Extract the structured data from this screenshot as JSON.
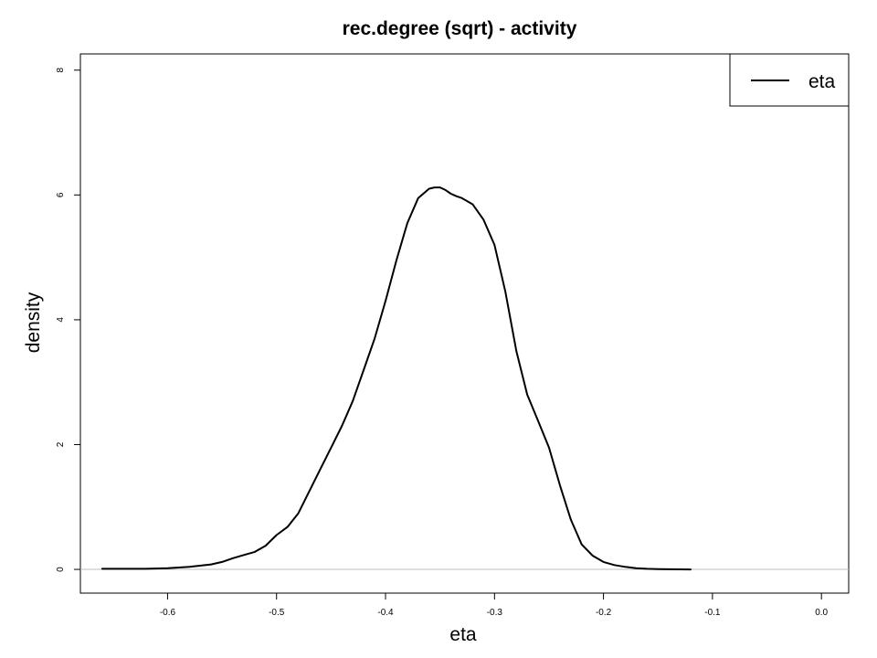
{
  "chart_data": {
    "type": "line",
    "title": "rec.degree (sqrt) - activity",
    "xlabel": "eta",
    "ylabel": "density",
    "xlim": [
      -0.68,
      0.025
    ],
    "ylim": [
      -0.38,
      8.26
    ],
    "x_ticks": [
      -0.6,
      -0.5,
      -0.4,
      -0.3,
      -0.2,
      -0.1,
      0.0
    ],
    "x_tick_labels": [
      "-0.6",
      "-0.5",
      "-0.4",
      "-0.3",
      "-0.2",
      "-0.1",
      "0.0"
    ],
    "y_ticks": [
      0,
      2,
      4,
      6,
      8
    ],
    "y_tick_labels": [
      "0",
      "2",
      "4",
      "6",
      "8"
    ],
    "baseline": 0,
    "legend": {
      "position": "top-right",
      "entries": [
        "eta"
      ]
    },
    "grid": false,
    "colors": {
      "line": "#000000",
      "baseline": "#bebebe",
      "frame": "#000000"
    },
    "series": [
      {
        "name": "eta",
        "x": [
          -0.66,
          -0.64,
          -0.62,
          -0.6,
          -0.58,
          -0.56,
          -0.55,
          -0.54,
          -0.53,
          -0.52,
          -0.51,
          -0.5,
          -0.49,
          -0.48,
          -0.47,
          -0.46,
          -0.45,
          -0.44,
          -0.43,
          -0.42,
          -0.41,
          -0.4,
          -0.39,
          -0.38,
          -0.37,
          -0.36,
          -0.355,
          -0.35,
          -0.345,
          -0.34,
          -0.335,
          -0.33,
          -0.32,
          -0.31,
          -0.3,
          -0.29,
          -0.28,
          -0.27,
          -0.26,
          -0.25,
          -0.24,
          -0.23,
          -0.22,
          -0.21,
          -0.2,
          -0.19,
          -0.18,
          -0.17,
          -0.16,
          -0.15,
          -0.14,
          -0.13,
          -0.12
        ],
        "y": [
          0.01,
          0.01,
          0.01,
          0.02,
          0.04,
          0.08,
          0.12,
          0.18,
          0.23,
          0.28,
          0.38,
          0.55,
          0.68,
          0.9,
          1.25,
          1.6,
          1.95,
          2.3,
          2.7,
          3.2,
          3.7,
          4.3,
          4.95,
          5.55,
          5.95,
          6.1,
          6.12,
          6.12,
          6.08,
          6.02,
          5.98,
          5.95,
          5.85,
          5.6,
          5.2,
          4.45,
          3.5,
          2.8,
          2.38,
          1.95,
          1.35,
          0.8,
          0.4,
          0.22,
          0.12,
          0.07,
          0.04,
          0.02,
          0.01,
          0.005,
          0.002,
          0.001,
          0.0
        ]
      }
    ]
  }
}
